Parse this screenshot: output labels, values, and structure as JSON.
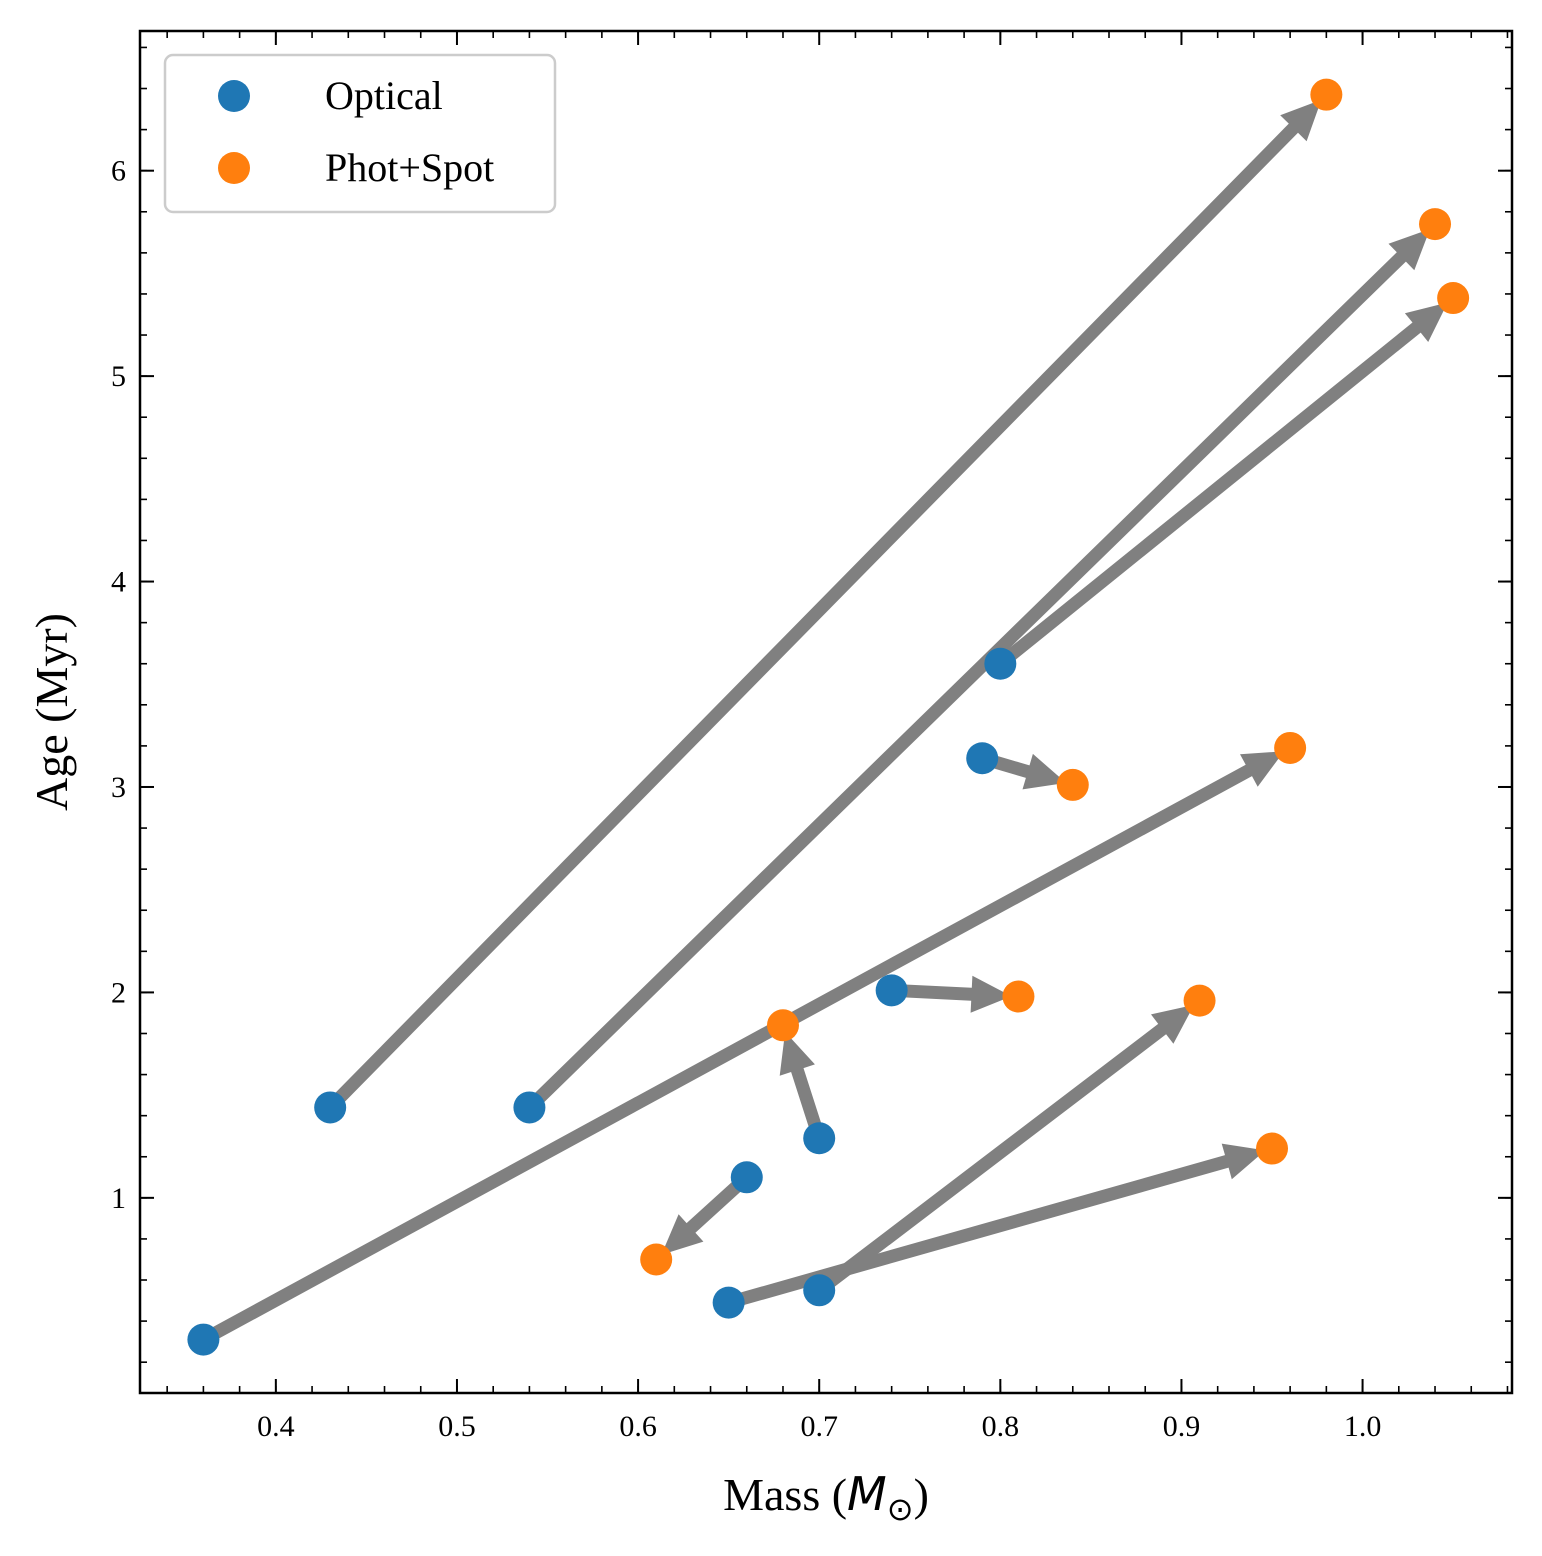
{
  "chart_data": {
    "type": "scatter",
    "xlabel_text": "Mass (",
    "xlabel_symbol": "M",
    "xlabel_subscript": "⊙",
    "xlabel_close": ")",
    "ylabel": "Age (Myr)",
    "xlim": [
      0.325,
      1.0825
    ],
    "ylim": [
      0.05,
      6.68
    ],
    "x_ticks": [
      0.4,
      0.5,
      0.6,
      0.7,
      0.8,
      0.9,
      1.0
    ],
    "x_tick_labels": [
      "0.4",
      "0.5",
      "0.6",
      "0.7",
      "0.8",
      "0.9",
      "1.0"
    ],
    "y_ticks": [
      1,
      2,
      3,
      4,
      5,
      6
    ],
    "y_tick_labels": [
      "1",
      "2",
      "3",
      "4",
      "5",
      "6"
    ],
    "x_minor_step": 0.02,
    "y_minor_step": 0.2,
    "grid": false,
    "legend_position": "top-left",
    "series": [
      {
        "name": "Optical",
        "color": "#1f77b4"
      },
      {
        "name": "Phot+Spot",
        "color": "#ff7f0e"
      }
    ],
    "arrow_color": "#808080",
    "pairs": [
      {
        "optical": [
          0.36,
          0.31
        ],
        "photspot": [
          0.96,
          3.19
        ]
      },
      {
        "optical": [
          0.43,
          1.44
        ],
        "photspot": [
          0.98,
          6.37
        ]
      },
      {
        "optical": [
          0.54,
          1.44
        ],
        "photspot": [
          1.04,
          5.74
        ]
      },
      {
        "optical": [
          0.65,
          0.49
        ],
        "photspot": [
          0.95,
          1.24
        ]
      },
      {
        "optical": [
          0.66,
          1.1
        ],
        "photspot": [
          0.61,
          0.7
        ]
      },
      {
        "optical": [
          0.7,
          0.55
        ],
        "photspot": [
          0.91,
          1.96
        ]
      },
      {
        "optical": [
          0.7,
          1.29
        ],
        "photspot": [
          0.68,
          1.84
        ]
      },
      {
        "optical": [
          0.74,
          2.01
        ],
        "photspot": [
          0.81,
          1.98
        ]
      },
      {
        "optical": [
          0.79,
          3.14
        ],
        "photspot": [
          0.84,
          3.01
        ]
      },
      {
        "optical": [
          0.8,
          3.6
        ],
        "photspot": [
          1.05,
          5.38
        ]
      }
    ]
  }
}
